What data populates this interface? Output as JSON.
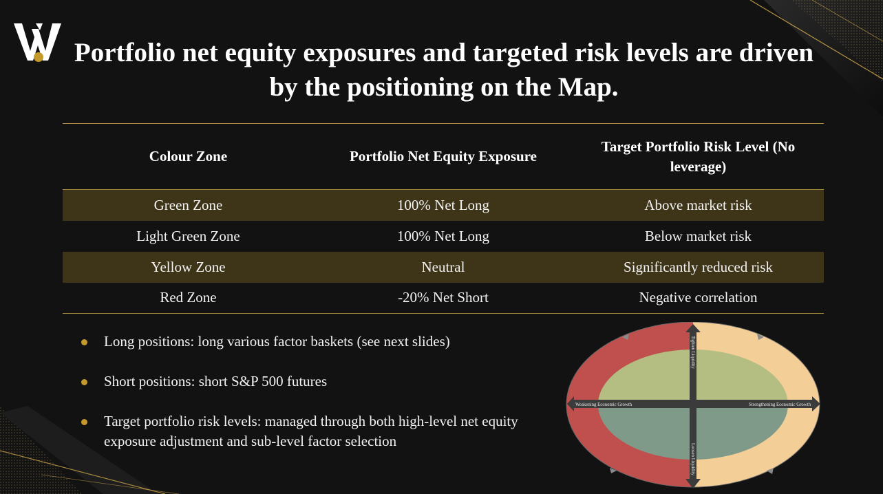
{
  "title": "Portfolio net equity exposures and targeted risk levels are driven by the positioning on the Map.",
  "table": {
    "headers": [
      "Colour Zone",
      "Portfolio Net Equity Exposure",
      "Target Portfolio Risk Level (No leverage)"
    ],
    "rows": [
      [
        "Green Zone",
        "100% Net Long",
        "Above market risk"
      ],
      [
        "Light Green Zone",
        "100% Net Long",
        "Below market risk"
      ],
      [
        "Yellow Zone",
        "Neutral",
        "Significantly reduced risk"
      ],
      [
        "Red Zone",
        "-20% Net Short",
        "Negative correlation"
      ]
    ]
  },
  "bullets": [
    "Long positions: long various factor baskets (see next slides)",
    "Short positions: short S&P 500 futures",
    "Target portfolio risk levels: managed through both high-level net equity exposure adjustment and sub-level factor selection"
  ],
  "map": {
    "top_label": "Tighten Liquidity",
    "bottom_label": "Loosen Liquidity",
    "left_label": "Weakening Economic Growth",
    "right_label": "Strengthening Economic Growth"
  },
  "colors": {
    "accent_gold": "#c49a2c",
    "row_shade": "#3e3519",
    "red_zone": "#c0504d",
    "yellow_zone": "#f3cf97",
    "light_green_zone": "#b4be82",
    "green_zone": "#7f9a88"
  },
  "icons": [
    "logo-w-mark",
    "bullet-dot-icon",
    "arrow-icon"
  ]
}
